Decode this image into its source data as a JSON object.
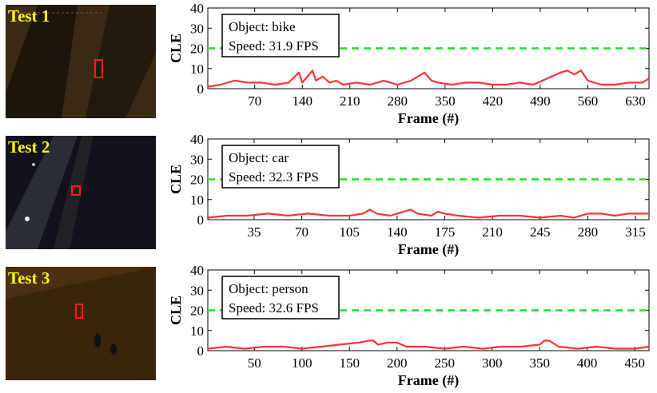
{
  "colors": {
    "trace": "#ff3333",
    "threshold": "#22dd22",
    "label": "#ffff00",
    "bbox": "#ff1a1a"
  },
  "panels": [
    {
      "test_label": "Test 1",
      "thumbnail": {
        "scene": "dark overhead road at night with cyclist",
        "tone": "#3a2a14",
        "road": true
      },
      "chart_data": {
        "type": "line",
        "ylabel": "CLE",
        "xlabel": "Frame (#)",
        "ylim": [
          0,
          40
        ],
        "yticks": [
          0,
          10,
          20,
          30,
          40
        ],
        "xlim": [
          1,
          650
        ],
        "xticks": [
          70,
          140,
          210,
          280,
          350,
          420,
          490,
          560,
          630
        ],
        "threshold": 20,
        "annotation": {
          "object": "Object: bike",
          "speed": "Speed: 31.9 FPS"
        },
        "series_name": "CLE",
        "x": [
          1,
          20,
          40,
          60,
          80,
          100,
          120,
          135,
          140,
          150,
          155,
          160,
          170,
          180,
          190,
          200,
          220,
          240,
          260,
          280,
          300,
          310,
          320,
          330,
          340,
          360,
          380,
          400,
          420,
          440,
          460,
          480,
          500,
          520,
          530,
          540,
          550,
          560,
          580,
          600,
          620,
          640,
          650
        ],
        "values": [
          1,
          2,
          4,
          3,
          3,
          2,
          3,
          8,
          3,
          7,
          9,
          4,
          6,
          3,
          4,
          2,
          3,
          2,
          4,
          2,
          4,
          6,
          8,
          4,
          3,
          2,
          3,
          3,
          2,
          2,
          3,
          2,
          5,
          8,
          9,
          7,
          9,
          4,
          2,
          2,
          3,
          3,
          5
        ]
      }
    },
    {
      "test_label": "Test 2",
      "thumbnail": {
        "scene": "night road with car from above",
        "tone": "#12121a",
        "road": true
      },
      "chart_data": {
        "type": "line",
        "ylabel": "CLE",
        "xlabel": "Frame (#)",
        "ylim": [
          0,
          40
        ],
        "yticks": [
          0,
          10,
          20,
          30,
          40
        ],
        "xlim": [
          1,
          325
        ],
        "xticks": [
          35,
          70,
          105,
          140,
          175,
          210,
          245,
          280,
          315
        ],
        "threshold": 20,
        "annotation": {
          "object": "Object: car",
          "speed": "Speed: 32.3 FPS"
        },
        "series_name": "CLE",
        "x": [
          1,
          15,
          30,
          45,
          60,
          75,
          90,
          105,
          115,
          120,
          125,
          135,
          145,
          150,
          155,
          165,
          170,
          175,
          185,
          200,
          215,
          230,
          245,
          260,
          270,
          280,
          290,
          300,
          310,
          320,
          325
        ],
        "values": [
          1,
          2,
          2,
          3,
          2,
          3,
          2,
          2,
          3,
          5,
          3,
          2,
          4,
          5,
          3,
          2,
          4,
          3,
          2,
          1,
          2,
          2,
          1,
          2,
          1,
          3,
          3,
          2,
          3,
          3,
          3
        ]
      }
    },
    {
      "test_label": "Test 3",
      "thumbnail": {
        "scene": "night ground with walking person",
        "tone": "#4a2f10",
        "road": false
      },
      "chart_data": {
        "type": "line",
        "ylabel": "CLE",
        "xlabel": "Frame (#)",
        "ylim": [
          0,
          40
        ],
        "yticks": [
          0,
          10,
          20,
          30,
          40
        ],
        "xlim": [
          1,
          465
        ],
        "xticks": [
          50,
          100,
          150,
          200,
          250,
          300,
          350,
          400,
          450
        ],
        "threshold": 20,
        "annotation": {
          "object": "Object: person",
          "speed": "Speed: 32.6 FPS"
        },
        "series_name": "CLE",
        "x": [
          1,
          20,
          40,
          60,
          80,
          100,
          120,
          140,
          160,
          170,
          175,
          180,
          190,
          200,
          210,
          230,
          250,
          270,
          290,
          310,
          330,
          350,
          355,
          360,
          370,
          390,
          410,
          430,
          450,
          465
        ],
        "values": [
          1,
          2,
          1,
          2,
          2,
          1,
          2,
          3,
          4,
          5,
          5,
          3,
          4,
          4,
          2,
          2,
          1,
          2,
          1,
          2,
          2,
          3,
          5,
          5,
          2,
          1,
          2,
          1,
          1,
          2
        ]
      }
    }
  ]
}
